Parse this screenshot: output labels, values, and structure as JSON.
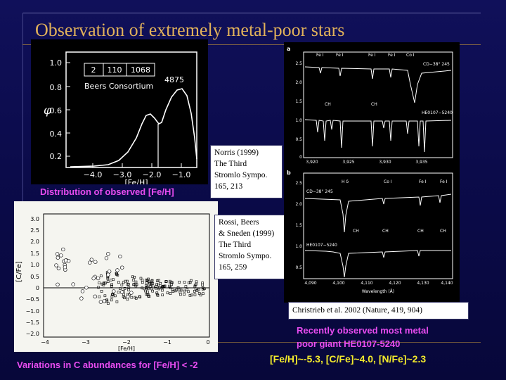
{
  "slide": {
    "title": "Observation of extremely metal-poor stars"
  },
  "panel_distribution": {
    "legend_cells": [
      "2",
      "110",
      "1068"
    ],
    "consortium_label": "Beers Consortium",
    "peak_label": "4875",
    "y_axis_label": "φ",
    "y_ticks": [
      "1.0",
      "0.8",
      "0.6",
      "0.4",
      "0.2"
    ],
    "x_ticks": [
      "−4.0",
      "−3.0",
      "−2.0",
      "−1.0"
    ],
    "x_axis_label": "[Fe/H]",
    "caption": "Distribution of observed [Fe/H]"
  },
  "panel_carbon": {
    "y_axis_label": "[C/Fe]",
    "y_ticks": [
      "3.0",
      "2.5",
      "2.0",
      "1.5",
      "1.0",
      "0.5",
      "0",
      "−0.5",
      "−1.0",
      "−1.5",
      "−2.0"
    ],
    "x_ticks": [
      "−4",
      "−3",
      "−2",
      "−1",
      "0"
    ],
    "x_axis_label": "[Fe/H]",
    "caption": "Variations in C abundances for [Fe/H] < -2"
  },
  "panel_spectra": {
    "top_id_labels": [
      "Fe I",
      "Fe I",
      "Fe I",
      "Fe I",
      "Co I"
    ],
    "top_star": "CD−38° 245",
    "ch_labels_top": [
      "CH",
      "CH"
    ],
    "top_star2": "HE0107−5240",
    "top_y_ticks": [
      "2.5",
      "2.0",
      "1.5",
      "1.0",
      "0.5",
      "0"
    ],
    "top_x_ticks": [
      "3,920",
      "3,925",
      "3,930",
      "3,935"
    ],
    "panel_a": "a",
    "panel_b": "b",
    "bottom_id_labels": [
      "H δ",
      "Co I",
      "Fe I",
      "Fe I"
    ],
    "bottom_star": "CD−38° 245",
    "ch_labels_bottom": [
      "CH",
      "CH",
      "CH",
      "CH"
    ],
    "bottom_star2": "HE0107−5240",
    "bottom_y_ticks": [
      "2.5",
      "2.0",
      "1.5",
      "1.0",
      "0.5"
    ],
    "bottom_x_ticks": [
      "4,090",
      "4,100",
      "4,110",
      "4,120",
      "4,130",
      "4,140"
    ],
    "x_axis_label": "Wavelength (Å)"
  },
  "notes": {
    "norris": [
      "Norris (1999)",
      "The Third",
      "Stromlo Sympo.",
      "165, 213"
    ],
    "rossi": [
      "Rossi, Beers",
      "&  Sneden (1999)",
      "The Third",
      "Stromlo Sympo.",
      "165, 259"
    ],
    "christlieb": "Christrieb et al. 2002 (Nature, 419, 904)"
  },
  "captions": {
    "recent_line1": "Recently observed most metal",
    "recent_line2": "poor giant HE0107-5240",
    "abundances": "[Fe/H]~-5.3, [C/Fe]~4.0, [N/Fe]~2.3"
  },
  "colors": {
    "title": "#e2b25a",
    "caption_magenta": "#e84cf0",
    "caption_yellow": "#f3ea2c"
  }
}
